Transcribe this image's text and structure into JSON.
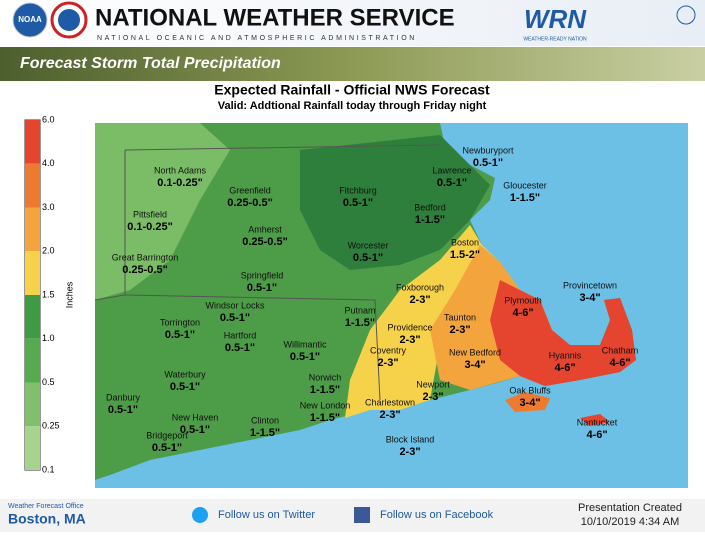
{
  "header": {
    "title": "NATIONAL WEATHER SERVICE",
    "subtitle": "NATIONAL OCEANIC AND ATMOSPHERIC ADMINISTRATION",
    "noaa_logo": "NOAA",
    "wrn_logo": "WRN",
    "wrn_tagline": "WEATHER-READY NATION"
  },
  "banner": "Forecast Storm Total Precipitation",
  "map": {
    "title": "Expected Rainfall - Official NWS Forecast",
    "subtitle": "Valid: Addtional Rainfall today through Friday night",
    "legend": {
      "title": "Inches",
      "bins": [
        {
          "label": "6.0",
          "color": "#e5452e"
        },
        {
          "label": "4.0",
          "color": "#ee7a30"
        },
        {
          "label": "3.0",
          "color": "#f4a43c"
        },
        {
          "label": "2.0",
          "color": "#f6d24a"
        },
        {
          "label": "1.5",
          "color": "#3e9a45"
        },
        {
          "label": "1.0",
          "color": "#57ab4f"
        },
        {
          "label": "0.5",
          "color": "#80c06b"
        },
        {
          "label": "0.25",
          "color": "#a8d38c"
        },
        {
          "label": "0.1"
        }
      ]
    },
    "cities": [
      {
        "name": "North Adams",
        "amount": "0.1-0.25\""
      },
      {
        "name": "Pittsfield",
        "amount": "0.1-0.25\""
      },
      {
        "name": "Great Barrington",
        "amount": "0.25-0.5\""
      },
      {
        "name": "Greenfield",
        "amount": "0.25-0.5\""
      },
      {
        "name": "Amherst",
        "amount": "0.25-0.5\""
      },
      {
        "name": "Springfield",
        "amount": "0.5-1\""
      },
      {
        "name": "Fitchburg",
        "amount": "0.5-1\""
      },
      {
        "name": "Worcester",
        "amount": "0.5-1\""
      },
      {
        "name": "Lawrence",
        "amount": "0.5-1\""
      },
      {
        "name": "Newburyport",
        "amount": "0.5-1\""
      },
      {
        "name": "Gloucester",
        "amount": "1-1.5\""
      },
      {
        "name": "Bedford",
        "amount": "1-1.5\""
      },
      {
        "name": "Boston",
        "amount": "1.5-2\""
      },
      {
        "name": "Foxborough",
        "amount": "2-3\""
      },
      {
        "name": "Taunton",
        "amount": "2-3\""
      },
      {
        "name": "Plymouth",
        "amount": "4-6\""
      },
      {
        "name": "Provincetown",
        "amount": "3-4\""
      },
      {
        "name": "Torrington",
        "amount": "0.5-1\""
      },
      {
        "name": "Windsor Locks",
        "amount": "0.5-1\""
      },
      {
        "name": "Hartford",
        "amount": "0.5-1\""
      },
      {
        "name": "Putnam",
        "amount": "1-1.5\""
      },
      {
        "name": "Providence",
        "amount": "2-3\""
      },
      {
        "name": "Willimantic",
        "amount": "0.5-1\""
      },
      {
        "name": "Coventry",
        "amount": "2-3\""
      },
      {
        "name": "New Bedford",
        "amount": "3-4\""
      },
      {
        "name": "Hyannis",
        "amount": "4-6\""
      },
      {
        "name": "Chatham",
        "amount": "4-6\""
      },
      {
        "name": "Waterbury",
        "amount": "0.5-1\""
      },
      {
        "name": "Norwich",
        "amount": "1-1.5\""
      },
      {
        "name": "Newport",
        "amount": "2-3\""
      },
      {
        "name": "Oak Bluffs",
        "amount": "3-4\""
      },
      {
        "name": "Danbury",
        "amount": "0.5-1\""
      },
      {
        "name": "New Haven",
        "amount": "0.5-1\""
      },
      {
        "name": "Charlestown",
        "amount": "2-3\""
      },
      {
        "name": "New London",
        "amount": "1-1.5\""
      },
      {
        "name": "Nantucket",
        "amount": "4-6\""
      },
      {
        "name": "Clinton",
        "amount": "1-1.5\""
      },
      {
        "name": "Bridgeport",
        "amount": "0.5-1\""
      },
      {
        "name": "Block Island",
        "amount": "2-3\""
      }
    ]
  },
  "footer": {
    "office_label": "Weather Forecast Office",
    "office": "Boston, MA",
    "twitter": "Follow us on Twitter",
    "facebook": "Follow us on Facebook",
    "created_label": "Presentation Created",
    "created": "10/10/2019 4:34 AM"
  }
}
